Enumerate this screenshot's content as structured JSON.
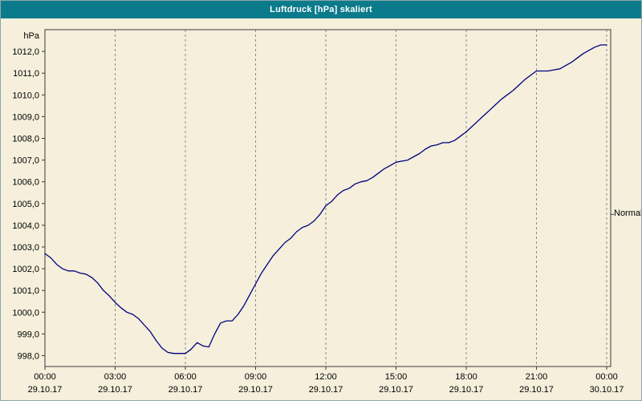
{
  "window": {
    "title": "Luftdruck [hPa] skaliert"
  },
  "colors": {
    "titlebar": "#0b7b8c",
    "title_text": "#ffffff",
    "background": "#f5efdb",
    "line": "#000080",
    "grid": "#8c8c8c",
    "border": "#3a3a3a",
    "text": "#000000"
  },
  "chart_data": {
    "type": "line",
    "title": "Luftdruck [hPa] skaliert",
    "xlabel": "",
    "ylabel": "hPa",
    "ylim": [
      997.5,
      1013
    ],
    "grid": "vertical-dashed",
    "legend": "none",
    "y_ticks": [
      998,
      999,
      1000,
      1001,
      1002,
      1003,
      1004,
      1005,
      1006,
      1007,
      1008,
      1009,
      1010,
      1011,
      1012
    ],
    "y_tick_labels": [
      "998,0",
      "999,0",
      "1000,0",
      "1001,0",
      "1002,0",
      "1003,0",
      "1004,0",
      "1005,0",
      "1006,0",
      "1007,0",
      "1008,0",
      "1009,0",
      "1010,0",
      "1011,0",
      "1012,0"
    ],
    "x_ticks": [
      {
        "hour": 0,
        "time": "00:00",
        "date": "29.10.17"
      },
      {
        "hour": 3,
        "time": "03:00",
        "date": "29.10.17"
      },
      {
        "hour": 6,
        "time": "06:00",
        "date": "29.10.17"
      },
      {
        "hour": 9,
        "time": "09:00",
        "date": "29.10.17"
      },
      {
        "hour": 12,
        "time": "12:00",
        "date": "29.10.17"
      },
      {
        "hour": 15,
        "time": "15:00",
        "date": "29.10.17"
      },
      {
        "hour": 18,
        "time": "18:00",
        "date": "29.10.17"
      },
      {
        "hour": 21,
        "time": "21:00",
        "date": "29.10.17"
      },
      {
        "hour": 24,
        "time": "00:00",
        "date": "30.10.17"
      }
    ],
    "annotations": [
      {
        "label": "Normal",
        "value": 1004.5,
        "side": "right"
      }
    ],
    "x_start_hour": 0,
    "x_step_hours": 0.25,
    "series": [
      {
        "name": "Luftdruck",
        "values": [
          1002.7,
          1002.5,
          1002.2,
          1002.0,
          1001.9,
          1001.9,
          1001.8,
          1001.75,
          1001.6,
          1001.35,
          1001.0,
          1000.75,
          1000.45,
          1000.2,
          1000.0,
          999.9,
          999.7,
          999.4,
          999.1,
          998.7,
          998.35,
          998.15,
          998.1,
          998.1,
          998.1,
          998.3,
          998.6,
          998.45,
          998.4,
          999.0,
          999.5,
          999.6,
          999.6,
          999.9,
          1000.3,
          1000.8,
          1001.3,
          1001.8,
          1002.2,
          1002.6,
          1002.9,
          1003.2,
          1003.4,
          1003.7,
          1003.9,
          1004.0,
          1004.2,
          1004.5,
          1004.9,
          1005.1,
          1005.4,
          1005.6,
          1005.7,
          1005.9,
          1006.0,
          1006.05,
          1006.2,
          1006.4,
          1006.6,
          1006.75,
          1006.9,
          1006.95,
          1007.0,
          1007.15,
          1007.3,
          1007.5,
          1007.65,
          1007.7,
          1007.8,
          1007.8,
          1007.9,
          1008.1,
          1008.3,
          1008.55,
          1008.8,
          1009.05,
          1009.3,
          1009.55,
          1009.8,
          1010.0,
          1010.2,
          1010.45,
          1010.7,
          1010.9,
          1011.1,
          1011.1,
          1011.1,
          1011.15,
          1011.2,
          1011.35,
          1011.5,
          1011.7,
          1011.9,
          1012.05,
          1012.2,
          1012.3,
          1012.3
        ]
      }
    ]
  }
}
